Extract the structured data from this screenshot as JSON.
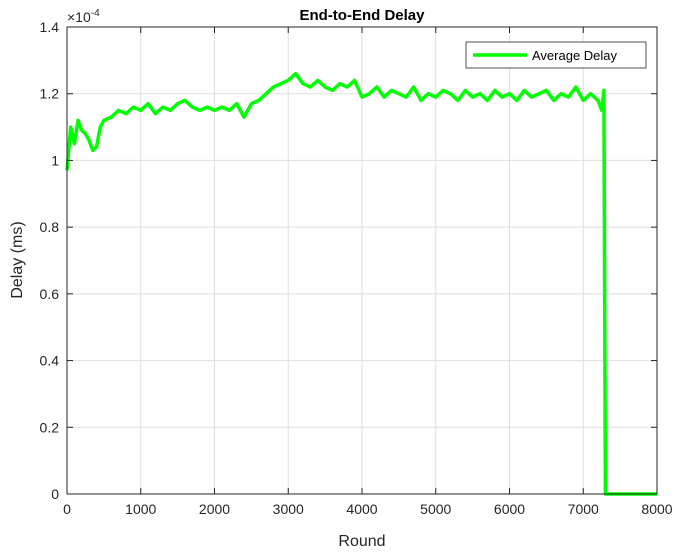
{
  "chart_data": {
    "type": "line",
    "title": "End-to-End Delay",
    "xlabel": "Round",
    "ylabel": "Delay (ms)",
    "exponent_label": "×10",
    "exponent_power": "-4",
    "xlim": [
      0,
      8000
    ],
    "ylim": [
      0,
      1.4
    ],
    "xticks": [
      0,
      1000,
      2000,
      3000,
      4000,
      5000,
      6000,
      7000,
      8000
    ],
    "xtick_labels": [
      "0",
      "1000",
      "2000",
      "3000",
      "4000",
      "5000",
      "6000",
      "7000",
      "8000"
    ],
    "yticks": [
      0,
      0.2,
      0.4,
      0.6,
      0.8,
      1,
      1.2,
      1.4
    ],
    "ytick_labels": [
      "0",
      "0.2",
      "0.4",
      "0.6",
      "0.8",
      "1",
      "1.2",
      "1.4"
    ],
    "grid": true,
    "legend_position": "top-right",
    "series": [
      {
        "name": "Average Delay",
        "color": "#00ff00",
        "x": [
          0,
          50,
          100,
          150,
          200,
          250,
          300,
          350,
          400,
          450,
          500,
          600,
          700,
          800,
          900,
          1000,
          1100,
          1200,
          1300,
          1400,
          1500,
          1600,
          1700,
          1800,
          1900,
          2000,
          2100,
          2200,
          2300,
          2400,
          2500,
          2600,
          2700,
          2800,
          2900,
          3000,
          3100,
          3200,
          3300,
          3400,
          3500,
          3600,
          3700,
          3800,
          3900,
          4000,
          4100,
          4200,
          4300,
          4400,
          4500,
          4600,
          4700,
          4800,
          4900,
          5000,
          5100,
          5200,
          5300,
          5400,
          5500,
          5600,
          5700,
          5800,
          5900,
          6000,
          6100,
          6200,
          6300,
          6400,
          6500,
          6600,
          6700,
          6800,
          6900,
          7000,
          7100,
          7200,
          7250,
          7280,
          7300,
          7350,
          8000
        ],
        "y": [
          0.97,
          1.1,
          1.05,
          1.12,
          1.09,
          1.08,
          1.06,
          1.03,
          1.04,
          1.1,
          1.12,
          1.13,
          1.15,
          1.14,
          1.16,
          1.15,
          1.17,
          1.14,
          1.16,
          1.15,
          1.17,
          1.18,
          1.16,
          1.15,
          1.16,
          1.15,
          1.16,
          1.15,
          1.17,
          1.13,
          1.17,
          1.18,
          1.2,
          1.22,
          1.23,
          1.24,
          1.26,
          1.23,
          1.22,
          1.24,
          1.22,
          1.21,
          1.23,
          1.22,
          1.24,
          1.19,
          1.2,
          1.22,
          1.19,
          1.21,
          1.2,
          1.19,
          1.22,
          1.18,
          1.2,
          1.19,
          1.21,
          1.2,
          1.18,
          1.21,
          1.19,
          1.2,
          1.18,
          1.21,
          1.19,
          1.2,
          1.18,
          1.21,
          1.19,
          1.2,
          1.21,
          1.18,
          1.2,
          1.19,
          1.22,
          1.18,
          1.2,
          1.18,
          1.15,
          1.21,
          0,
          0,
          0
        ]
      }
    ]
  }
}
